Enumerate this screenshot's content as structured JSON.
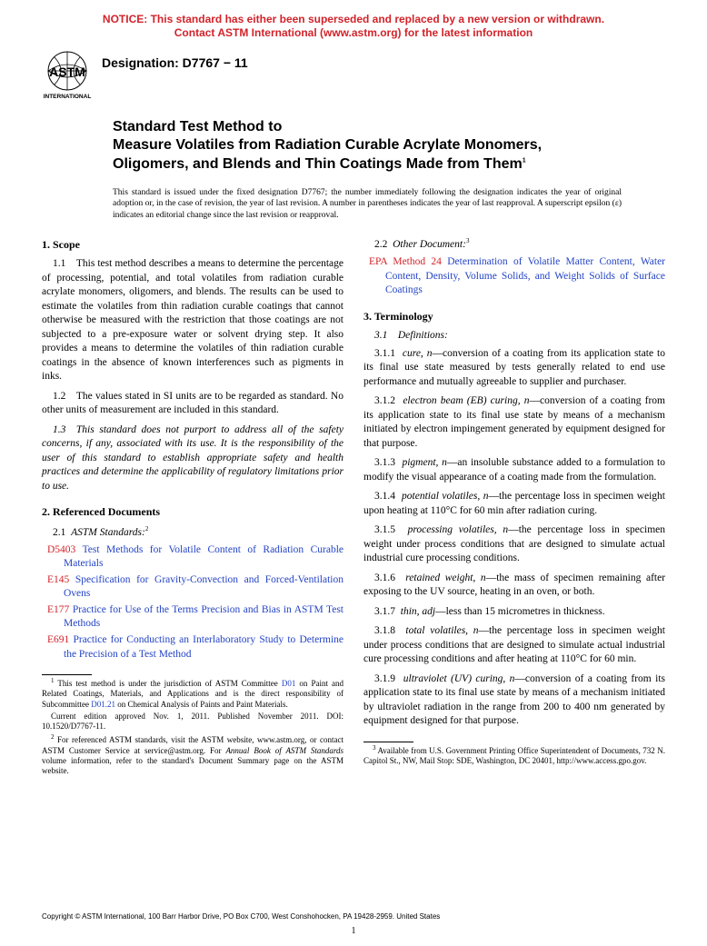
{
  "notice": {
    "line1": "NOTICE: This standard has either been superseded and replaced by a new version or withdrawn.",
    "line2": "Contact ASTM International (www.astm.org) for the latest information"
  },
  "logo": {
    "top_text": "ASTM",
    "bottom_text": "INTERNATIONAL"
  },
  "designation_label": "Designation: D7767 − 11",
  "title": "Standard Test Method to\nMeasure Volatiles from Radiation Curable Acrylate Monomers, Oligomers, and Blends and Thin Coatings Made from Them",
  "title_sup": "1",
  "issuance": "This standard is issued under the fixed designation D7767; the number immediately following the designation indicates the year of original adoption or, in the case of revision, the year of last revision. A number in parentheses indicates the year of last reapproval. A superscript epsilon (ε) indicates an editorial change since the last revision or reapproval.",
  "section1": {
    "head": "1. Scope",
    "p11": "1.1 This test method describes a means to determine the percentage of processing, potential, and total volatiles from radiation curable acrylate monomers, oligomers, and blends. The results can be used to estimate the volatiles from thin radiation curable coatings that cannot otherwise be measured with the restriction that those coatings are not subjected to a pre-exposure water or solvent drying step. It also provides a means to determine the volatiles of thin radiation curable coatings in the absence of known interferences such as pigments in inks.",
    "p12": "1.2 The values stated in SI units are to be regarded as standard. No other units of measurement are included in this standard.",
    "p13": "1.3 This standard does not purport to address all of the safety concerns, if any, associated with its use. It is the responsibility of the user of this standard to establish appropriate safety and health practices and determine the applicability of regulatory limitations prior to use."
  },
  "section2": {
    "head": "2. Referenced Documents",
    "sub21_label": "2.1",
    "sub21_text": "ASTM Standards:",
    "sub21_sup": "2",
    "astm": [
      {
        "code": "D5403",
        "title": "Test Methods for Volatile Content of Radiation Curable Materials"
      },
      {
        "code": "E145",
        "title": "Specification for Gravity-Convection and Forced-Ventilation Ovens"
      },
      {
        "code": "E177",
        "title": "Practice for Use of the Terms Precision and Bias in ASTM Test Methods"
      },
      {
        "code": "E691",
        "title": "Practice for Conducting an Interlaboratory Study to Determine the Precision of a Test Method"
      }
    ],
    "sub22_label": "2.2",
    "sub22_text": "Other Document:",
    "sub22_sup": "3",
    "other": [
      {
        "code": "EPA Method 24",
        "title": "Determination of Volatile Matter Content, Water Content, Density, Volume Solids, and Weight Solids of Surface Coatings"
      }
    ]
  },
  "section3": {
    "head": "3. Terminology",
    "sub31": "3.1 Definitions:",
    "defs": [
      {
        "num": "3.1.1",
        "term": "cure, n",
        "text": "—conversion of a coating from its application state to its final use state measured by tests generally related to end use performance and mutually agreeable to supplier and purchaser."
      },
      {
        "num": "3.1.2",
        "term": "electron beam (EB) curing, n",
        "text": "—conversion of a coating from its application state to its final use state by means of a mechanism initiated by electron impingement generated by equipment designed for that purpose."
      },
      {
        "num": "3.1.3",
        "term": "pigment, n",
        "text": "—an insoluble substance added to a formulation to modify the visual appearance of a coating made from the formulation."
      },
      {
        "num": "3.1.4",
        "term": "potential volatiles, n",
        "text": "—the percentage loss in specimen weight upon heating at 110°C for 60 min after radiation curing."
      },
      {
        "num": "3.1.5",
        "term": "processing volatiles, n",
        "text": "—the percentage loss in specimen weight under process conditions that are designed to simulate actual industrial cure processing conditions."
      },
      {
        "num": "3.1.6",
        "term": "retained weight, n",
        "text": "—the mass of specimen remaining after exposing to the UV source, heating in an oven, or both."
      },
      {
        "num": "3.1.7",
        "term": "thin, adj",
        "text": "—less than 15 micrometres in thickness."
      },
      {
        "num": "3.1.8",
        "term": "total volatiles, n",
        "text": "—the percentage loss in specimen weight under process conditions that are designed to simulate actual industrial cure processing conditions and after heating at 110°C for 60 min."
      },
      {
        "num": "3.1.9",
        "term": "ultraviolet (UV) curing, n",
        "text": "—conversion of a coating from its application state to its final use state by means of a mechanism initiated by ultraviolet radiation in the range from 200 to 400 nm generated by equipment designed for that purpose."
      }
    ]
  },
  "footnotes_left": [
    {
      "sup": "1",
      "text": " This test method is under the jurisdiction of ASTM Committee D01 on Paint and Related Coatings, Materials, and Applications and is the direct responsibility of Subcommittee D01.21 on Chemical Analysis of Paints and Paint Materials.",
      "links": [
        "D01",
        "D01.21"
      ]
    },
    {
      "sup": "",
      "text": "Current edition approved Nov. 1, 2011. Published November 2011. DOI: 10.1520/D7767-11."
    },
    {
      "sup": "2",
      "text": " For referenced ASTM standards, visit the ASTM website, www.astm.org, or contact ASTM Customer Service at service@astm.org. For Annual Book of ASTM Standards volume information, refer to the standard's Document Summary page on the ASTM website."
    }
  ],
  "footnotes_right": [
    {
      "sup": "3",
      "text": " Available from U.S. Government Printing Office Superintendent of Documents, 732 N. Capitol St., NW, Mail Stop: SDE, Washington, DC 20401, http://www.access.gpo.gov."
    }
  ],
  "copyright": "Copyright © ASTM International, 100 Barr Harbor Drive, PO Box C700, West Conshohocken, PA 19428-2959. United States",
  "pagenum": "1"
}
